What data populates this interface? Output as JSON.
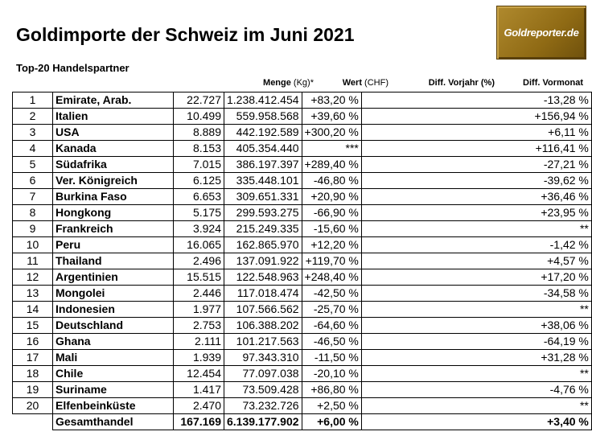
{
  "title": "Goldimporte der Schweiz im Juni 2021",
  "subtitle": "Top-20 Handelspartner",
  "logo_text": "Goldreporter.de",
  "headers": {
    "menge": "Menge",
    "menge_unit": " (Kg)*",
    "wert": "Wert",
    "wert_unit": " (CHF)",
    "vorjahr": "Diff. Vorjahr (%)",
    "vormonat": "Diff. Vormonat"
  },
  "rows": [
    {
      "rank": "1",
      "country": "Emirate, Arab.",
      "menge": "22.727",
      "wert": "1.238.412.454",
      "vorjahr": "+83,20 %",
      "vormonat": "-13,28 %"
    },
    {
      "rank": "2",
      "country": "Italien",
      "menge": "10.499",
      "wert": "559.958.568",
      "vorjahr": "+39,60 %",
      "vormonat": "+156,94 %"
    },
    {
      "rank": "3",
      "country": "USA",
      "menge": "8.889",
      "wert": "442.192.589",
      "vorjahr": "+300,20 %",
      "vormonat": "+6,11 %"
    },
    {
      "rank": "4",
      "country": "Kanada",
      "menge": "8.153",
      "wert": "405.354.440",
      "vorjahr": "***",
      "vormonat": "+116,41 %"
    },
    {
      "rank": "5",
      "country": "Südafrika",
      "menge": "7.015",
      "wert": "386.197.397",
      "vorjahr": "+289,40 %",
      "vormonat": "-27,21 %"
    },
    {
      "rank": "6",
      "country": "Ver. Königreich",
      "menge": "6.125",
      "wert": "335.448.101",
      "vorjahr": "-46,80 %",
      "vormonat": "-39,62 %"
    },
    {
      "rank": "7",
      "country": "Burkina Faso",
      "menge": "6.653",
      "wert": "309.651.331",
      "vorjahr": "+20,90 %",
      "vormonat": "+36,46 %"
    },
    {
      "rank": "8",
      "country": "Hongkong",
      "menge": "5.175",
      "wert": "299.593.275",
      "vorjahr": "-66,90 %",
      "vormonat": "+23,95 %"
    },
    {
      "rank": "9",
      "country": "Frankreich",
      "menge": "3.924",
      "wert": "215.249.335",
      "vorjahr": "-15,60 %",
      "vormonat": "**"
    },
    {
      "rank": "10",
      "country": "Peru",
      "menge": "16.065",
      "wert": "162.865.970",
      "vorjahr": "+12,20 %",
      "vormonat": "-1,42 %"
    },
    {
      "rank": "11",
      "country": "Thailand",
      "menge": "2.496",
      "wert": "137.091.922",
      "vorjahr": "+119,70 %",
      "vormonat": "+4,57 %"
    },
    {
      "rank": "12",
      "country": "Argentinien",
      "menge": "15.515",
      "wert": "122.548.963",
      "vorjahr": "+248,40 %",
      "vormonat": "+17,20 %"
    },
    {
      "rank": "13",
      "country": "Mongolei",
      "menge": "2.446",
      "wert": "117.018.474",
      "vorjahr": "-42,50 %",
      "vormonat": "-34,58 %"
    },
    {
      "rank": "14",
      "country": "Indonesien",
      "menge": "1.977",
      "wert": "107.566.562",
      "vorjahr": "-25,70 %",
      "vormonat": "**"
    },
    {
      "rank": "15",
      "country": "Deutschland",
      "menge": "2.753",
      "wert": "106.388.202",
      "vorjahr": "-64,60 %",
      "vormonat": "+38,06 %"
    },
    {
      "rank": "16",
      "country": "Ghana",
      "menge": "2.111",
      "wert": "101.217.563",
      "vorjahr": "-46,50 %",
      "vormonat": "-64,19 %"
    },
    {
      "rank": "17",
      "country": "Mali",
      "menge": "1.939",
      "wert": "97.343.310",
      "vorjahr": "-11,50 %",
      "vormonat": "+31,28 %"
    },
    {
      "rank": "18",
      "country": "Chile",
      "menge": "12.454",
      "wert": "77.097.038",
      "vorjahr": "-20,10 %",
      "vormonat": "**"
    },
    {
      "rank": "19",
      "country": "Suriname",
      "menge": "1.417",
      "wert": "73.509.428",
      "vorjahr": "+86,80 %",
      "vormonat": "-4,76 %"
    },
    {
      "rank": "20",
      "country": "Elfenbeinküste",
      "menge": "2.470",
      "wert": "73.232.726",
      "vorjahr": "+2,50 %",
      "vormonat": "**"
    }
  ],
  "total": {
    "label": "Gesamthandel",
    "menge": "167.169",
    "wert": "6.139.177.902",
    "vorjahr": "+6,00 %",
    "vormonat": "+3,40 %"
  }
}
